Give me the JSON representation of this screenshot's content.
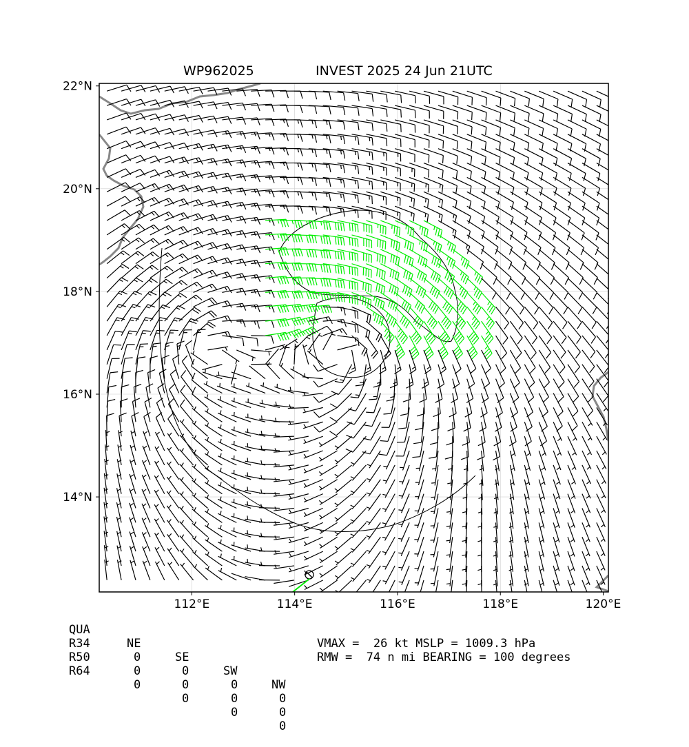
{
  "title": {
    "left": "WP962025",
    "right": "INVEST 2025 24 Jun 21UTC"
  },
  "map": {
    "lon_range": [
      110.2,
      120.1
    ],
    "lat_range": [
      12.15,
      22.05
    ],
    "lat_ticks": [
      "22°N",
      "20°N",
      "18°N",
      "16°N",
      "14°N"
    ],
    "lon_ticks": [
      "112°E",
      "114°E",
      "116°E",
      "118°E",
      "120°E"
    ],
    "storm_center": {
      "lon": 114.9,
      "lat": 16.9
    },
    "colors": {
      "barb": "#000000",
      "barb_strong": "#00ee00",
      "coast": "#888888",
      "grid": "#cccccc",
      "contour": "#000000"
    },
    "barb_units": "kt",
    "strong_threshold_kt": 34
  },
  "table": {
    "headers": [
      "QUA",
      "NE",
      "SE",
      "SW",
      "NW"
    ],
    "rows": [
      {
        "label": "R34",
        "values": [
          "0",
          "0",
          "0",
          "0"
        ]
      },
      {
        "label": "R50",
        "values": [
          "0",
          "0",
          "0",
          "0"
        ]
      },
      {
        "label": "R64",
        "values": [
          "0",
          "0",
          "0",
          "0"
        ]
      }
    ]
  },
  "info": {
    "line1": "VMAX =  26 kt MSLP = 1009.3 hPa",
    "line2": "RMW =  74 n mi BEARING = 100 degrees"
  }
}
